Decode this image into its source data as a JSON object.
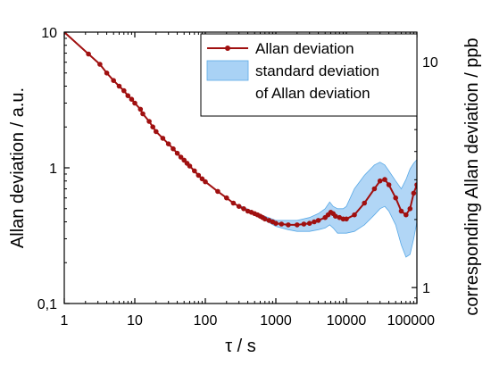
{
  "chart_data": {
    "type": "line",
    "xlabel": "τ / s",
    "ylabel": "Allan deviation / a.u.",
    "y2label": "corresponding Allan deviation / ppb",
    "xscale": "log",
    "yscale": "log",
    "xlim": [
      1,
      100000
    ],
    "ylim": [
      0.1,
      10
    ],
    "y2lim": [
      0.85,
      13.5
    ],
    "x_ticks": [
      {
        "v": 1,
        "label": "1"
      },
      {
        "v": 10,
        "label": "10"
      },
      {
        "v": 100,
        "label": "100"
      },
      {
        "v": 1000,
        "label": "1000"
      },
      {
        "v": 10000,
        "label": "10000"
      },
      {
        "v": 100000,
        "label": "100000"
      }
    ],
    "y_ticks": [
      {
        "v": 10,
        "label": "10"
      },
      {
        "v": 1,
        "label": "1"
      },
      {
        "v": 0.1,
        "label": "0,1"
      }
    ],
    "y2_ticks": [
      {
        "v": 10,
        "label": "10"
      },
      {
        "v": 1,
        "label": "1"
      }
    ],
    "grid": false,
    "legend_position": "top-right",
    "line_color": "#a01010",
    "band_color": "#a9d2f5",
    "band_edge_color": "#5aa9e6",
    "series": [
      {
        "name": "Allan deviation",
        "x": [
          1,
          2.2,
          3.2,
          4,
          5,
          6,
          7,
          8,
          9,
          10,
          12,
          13,
          16,
          18,
          20,
          25,
          30,
          35,
          40,
          45,
          50,
          55,
          60,
          70,
          80,
          90,
          100,
          150,
          200,
          250,
          300,
          350,
          400,
          450,
          500,
          550,
          600,
          650,
          700,
          800,
          900,
          1000,
          1200,
          1500,
          2000,
          2500,
          3000,
          3500,
          4000,
          5000,
          5500,
          6000,
          6500,
          7000,
          8000,
          9000,
          10000,
          13000,
          18000,
          25000,
          30000,
          35000,
          40000,
          50000,
          60000,
          70000,
          80000,
          90000,
          100000
        ],
        "values": [
          10,
          6.9,
          5.8,
          5.0,
          4.4,
          4.0,
          3.7,
          3.4,
          3.2,
          3.0,
          2.7,
          2.5,
          2.2,
          2.0,
          1.85,
          1.65,
          1.5,
          1.38,
          1.28,
          1.2,
          1.14,
          1.08,
          1.03,
          0.95,
          0.88,
          0.83,
          0.79,
          0.67,
          0.6,
          0.55,
          0.52,
          0.5,
          0.48,
          0.47,
          0.46,
          0.45,
          0.44,
          0.43,
          0.42,
          0.41,
          0.4,
          0.39,
          0.385,
          0.38,
          0.38,
          0.385,
          0.39,
          0.4,
          0.41,
          0.43,
          0.45,
          0.47,
          0.46,
          0.44,
          0.43,
          0.42,
          0.42,
          0.45,
          0.55,
          0.7,
          0.8,
          0.82,
          0.75,
          0.6,
          0.48,
          0.45,
          0.5,
          0.65,
          0.75
        ]
      }
    ],
    "band": {
      "name": "standard deviation of Allan deviation",
      "x": [
        300,
        500,
        700,
        1000,
        1500,
        2000,
        3000,
        4000,
        5000,
        5800,
        6500,
        7500,
        9000,
        10000,
        13000,
        18000,
        25000,
        30000,
        35000,
        40000,
        50000,
        60000,
        70000,
        80000,
        90000,
        100000
      ],
      "upper": [
        0.53,
        0.47,
        0.44,
        0.41,
        0.41,
        0.41,
        0.43,
        0.46,
        0.5,
        0.56,
        0.52,
        0.5,
        0.5,
        0.52,
        0.7,
        0.88,
        1.05,
        1.1,
        1.05,
        0.95,
        0.8,
        0.7,
        0.82,
        0.98,
        1.08,
        1.15
      ],
      "lower": [
        0.51,
        0.45,
        0.41,
        0.37,
        0.35,
        0.34,
        0.34,
        0.35,
        0.36,
        0.38,
        0.36,
        0.33,
        0.33,
        0.33,
        0.34,
        0.38,
        0.45,
        0.5,
        0.52,
        0.48,
        0.38,
        0.27,
        0.22,
        0.23,
        0.3,
        0.4
      ]
    }
  }
}
